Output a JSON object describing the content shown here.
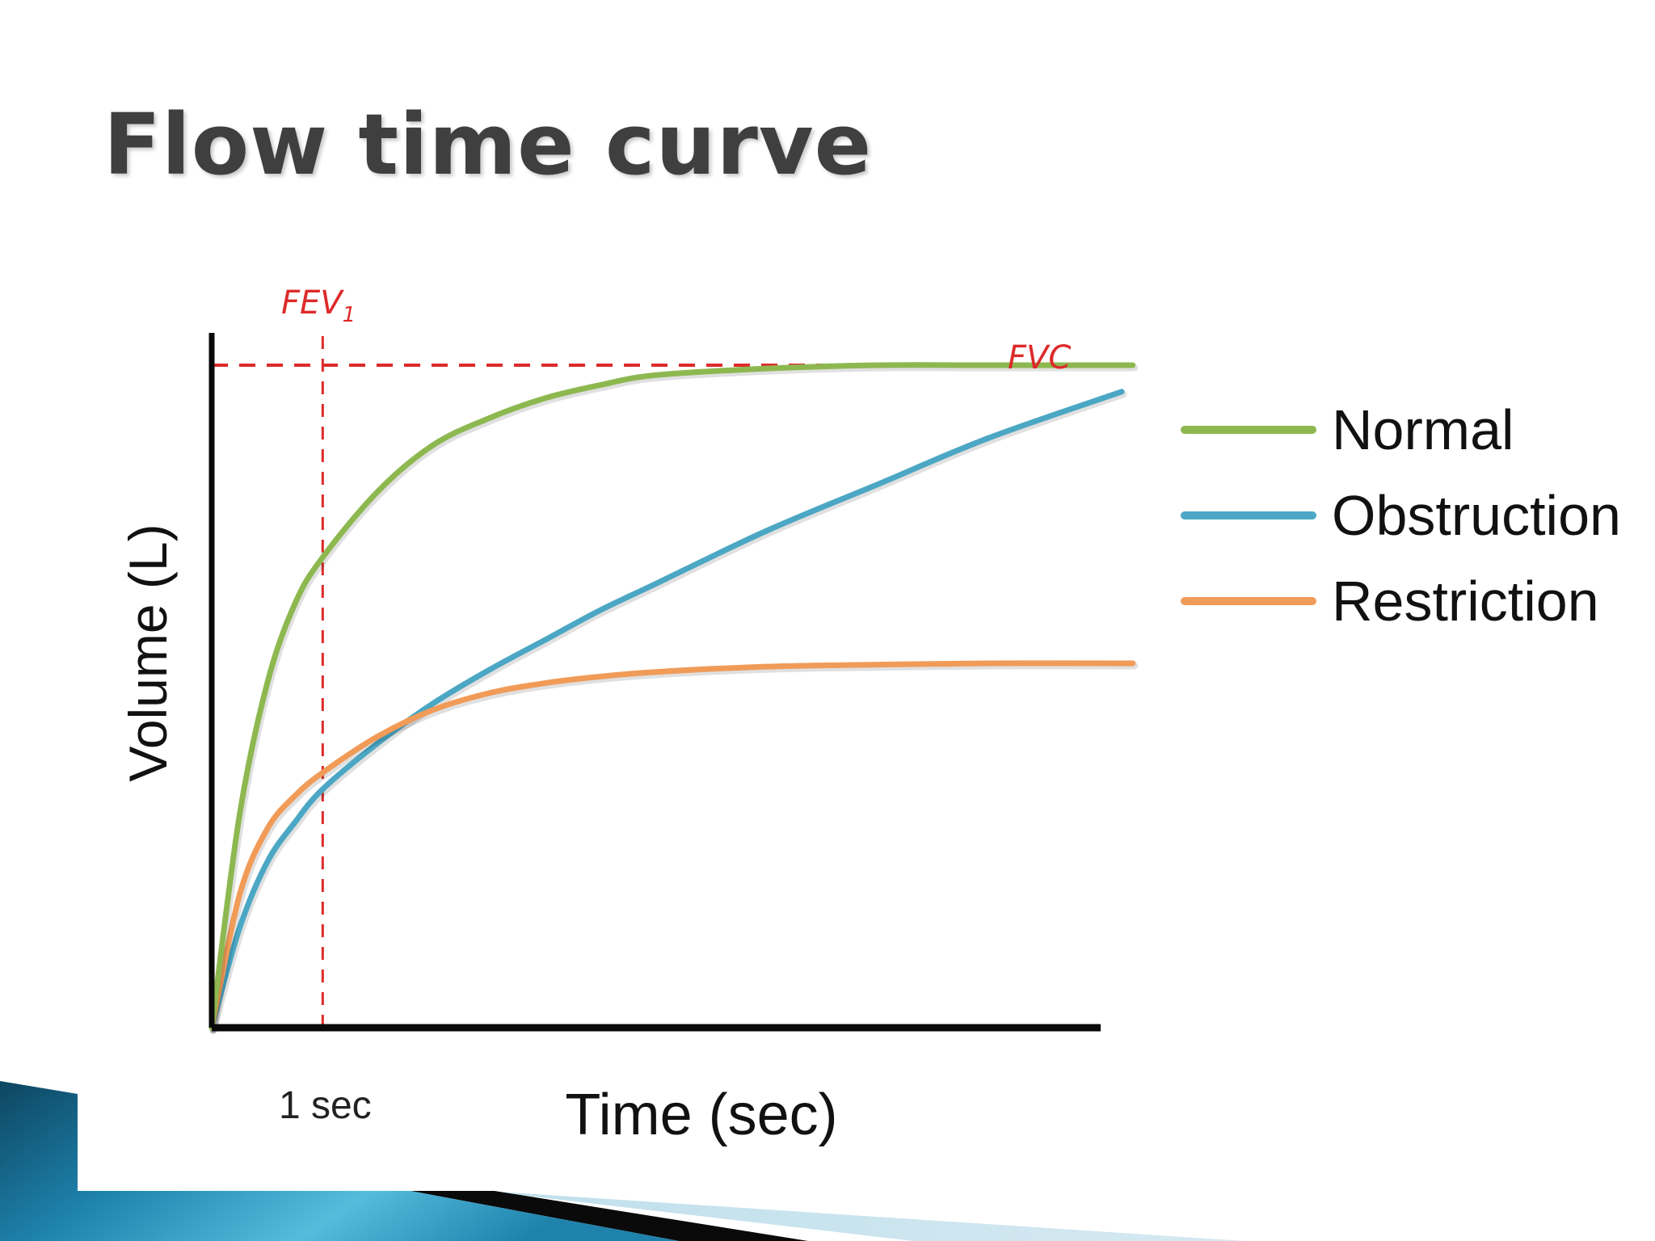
{
  "slide": {
    "title": "Flow time curve",
    "theme_colors": {
      "text": "#3f3f3f",
      "corner_dark": "#0d4560",
      "corner_mid": "#1e82ac",
      "corner_light": "#55bcdc",
      "corner_pale": "#d6e9f1"
    }
  },
  "chart_data": {
    "type": "line",
    "xlabel": "Time (sec)",
    "ylabel": "Volume (L)",
    "x_tick_labels": [
      {
        "x": 1,
        "label": "1 sec"
      }
    ],
    "xlim": [
      0,
      8.2
    ],
    "ylim": [
      0,
      1.1
    ],
    "grid": false,
    "legend_position": "right",
    "markers": [
      {
        "label": "FEV",
        "subscript": "1",
        "axis": "x",
        "value": 1,
        "color": "#dd2a2a"
      },
      {
        "label": "FVC",
        "axis": "y",
        "value": 1.0,
        "color": "#dd2a2a"
      }
    ],
    "series": [
      {
        "name": "Normal",
        "color": "#8db850",
        "x": [
          0,
          0.25,
          0.5,
          0.75,
          1,
          1.5,
          2,
          2.5,
          3,
          3.5,
          4,
          5,
          6,
          7,
          8.3
        ],
        "values": [
          0,
          0.32,
          0.52,
          0.64,
          0.71,
          0.81,
          0.88,
          0.92,
          0.95,
          0.97,
          0.985,
          0.995,
          1.0,
          1.0,
          1.0
        ]
      },
      {
        "name": "Obstruction",
        "color": "#4ba7c4",
        "x": [
          0,
          0.25,
          0.5,
          0.75,
          1,
          1.5,
          2,
          2.5,
          3,
          3.5,
          4,
          5,
          6,
          7,
          8.2
        ],
        "values": [
          0,
          0.15,
          0.25,
          0.31,
          0.36,
          0.43,
          0.49,
          0.54,
          0.585,
          0.63,
          0.67,
          0.75,
          0.82,
          0.89,
          0.96
        ]
      },
      {
        "name": "Restriction",
        "color": "#f19b58",
        "x": [
          0,
          0.25,
          0.5,
          0.75,
          1,
          1.5,
          2,
          2.5,
          3,
          3.5,
          4,
          5,
          6,
          7,
          8.3
        ],
        "values": [
          0,
          0.2,
          0.3,
          0.35,
          0.385,
          0.44,
          0.48,
          0.505,
          0.52,
          0.53,
          0.537,
          0.545,
          0.548,
          0.55,
          0.55
        ]
      }
    ]
  }
}
